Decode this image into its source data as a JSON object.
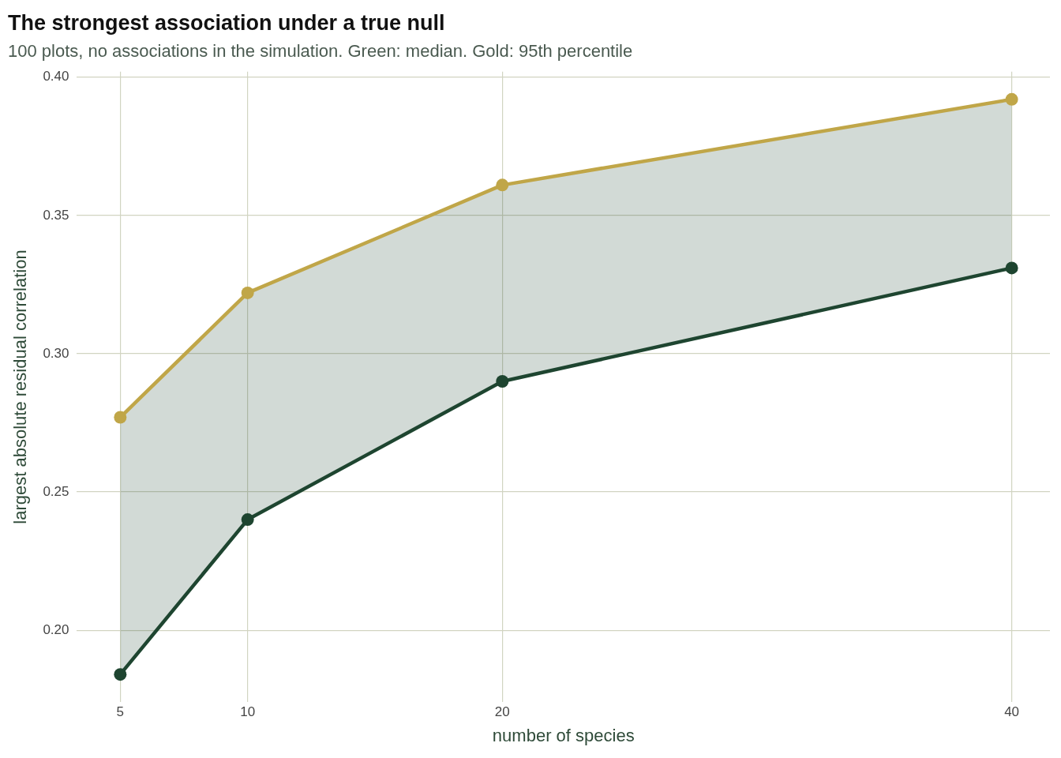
{
  "chart_data": {
    "type": "line",
    "title": "The strongest association under a true null",
    "subtitle": "100 plots, no associations in the simulation. Green: median. Gold: 95th percentile",
    "xlabel": "number of species",
    "ylabel": "largest absolute residual correlation",
    "x": [
      5,
      10,
      20,
      40
    ],
    "series": [
      {
        "color": "#1e4530",
        "values": [
          0.184,
          0.24,
          0.29,
          0.331
        ],
        "lower": [
          0.184,
          0.24,
          0.29,
          0.331
        ],
        "upper": [
          0.277,
          0.322,
          0.361,
          0.392
        ]
      },
      {
        "color": "#c0a648",
        "values": [
          0.277,
          0.322,
          0.361,
          0.392
        ]
      }
    ],
    "xlim": [
      3.3,
      41.5
    ],
    "xticks": [
      5,
      10,
      20,
      40
    ],
    "ylim": [
      0.174,
      0.402
    ],
    "yticks": [
      {
        "value": 0.2,
        "label": "0.20"
      },
      {
        "value": 0.25,
        "label": "0.25"
      },
      {
        "value": 0.3,
        "label": "0.30"
      },
      {
        "value": 0.35,
        "label": "0.35"
      },
      {
        "value": 0.4,
        "label": "0.40"
      }
    ],
    "grid": true,
    "legend": false,
    "marker": "circle",
    "line_style": "solid"
  }
}
